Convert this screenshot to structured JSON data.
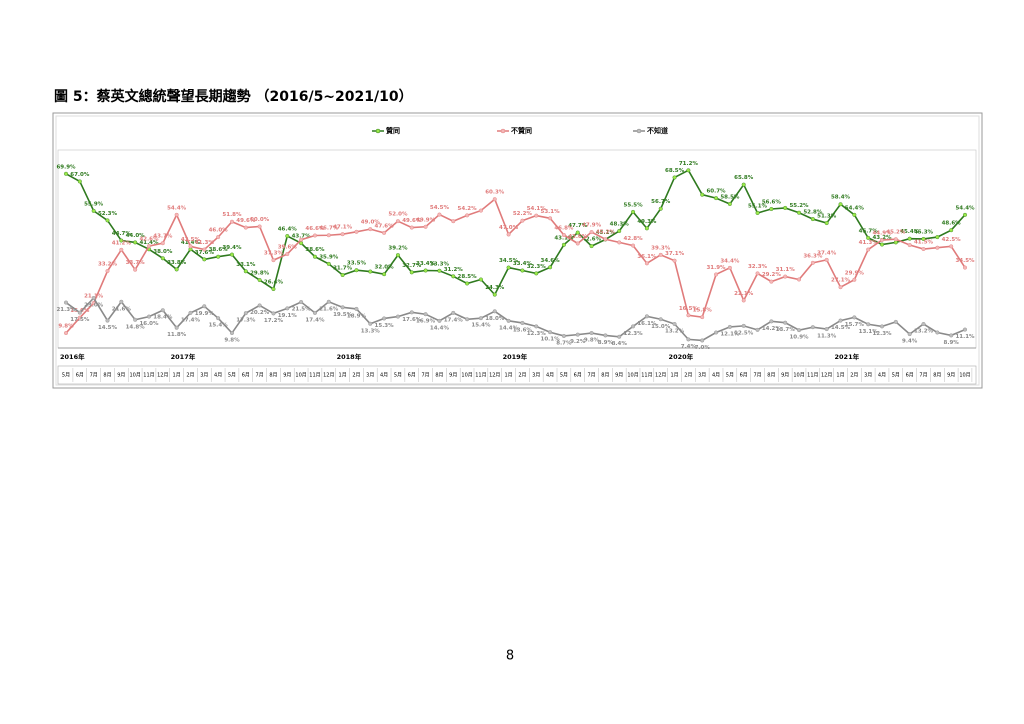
{
  "page_title": "圖 5：蔡英文總統聲望長期趨勢 （2016/5~2021/10）",
  "page_number": "8",
  "chart_data": {
    "type": "line",
    "categories": [
      "5月",
      "6月",
      "7月",
      "8月",
      "9月",
      "10月",
      "11月",
      "12月",
      "1月",
      "2月",
      "3月",
      "4月",
      "5月",
      "6月",
      "7月",
      "8月",
      "9月",
      "10月",
      "11月",
      "12月",
      "1月",
      "2月",
      "3月",
      "4月",
      "5月",
      "6月",
      "7月",
      "8月",
      "9月",
      "10月",
      "11月",
      "12月",
      "1月",
      "2月",
      "3月",
      "4月",
      "5月",
      "6月",
      "7月",
      "8月",
      "9月",
      "10月",
      "11月",
      "12月",
      "1月",
      "2月",
      "3月",
      "4月",
      "5月",
      "6月",
      "7月",
      "8月",
      "9月",
      "10月",
      "11月",
      "12月",
      "1月",
      "2月",
      "3月",
      "4月",
      "5月",
      "6月",
      "7月",
      "8月",
      "9月",
      "10月"
    ],
    "year_labels": [
      "2016年",
      "2017年",
      "2018年",
      "2019年",
      "2020年",
      "2021年"
    ],
    "ylim": [
      0,
      80
    ],
    "legend": "top",
    "series": [
      {
        "name": "贊同",
        "color": "#2f7a1f",
        "marker": "#9be84a",
        "values": [
          69.9,
          67.0,
          55.9,
          52.3,
          44.7,
          44.0,
          41.4,
          38.0,
          33.8,
          41.4,
          37.6,
          38.6,
          39.4,
          33.1,
          29.8,
          26.4,
          46.4,
          43.7,
          38.6,
          35.9,
          31.7,
          33.5,
          33.0,
          32.0,
          39.2,
          32.7,
          33.4,
          33.3,
          31.2,
          28.5,
          30.0,
          24.3,
          34.5,
          33.4,
          32.3,
          34.6,
          43.1,
          47.7,
          42.6,
          45.1,
          48.3,
          55.5,
          49.3,
          56.7,
          68.5,
          71.2,
          62.0,
          60.7,
          58.5,
          65.8,
          55.1,
          56.6,
          57.0,
          55.2,
          52.8,
          51.3,
          58.4,
          54.4,
          45.7,
          43.2,
          44.0,
          45.4,
          45.3,
          46.0,
          48.6,
          54.4
        ],
        "value_labels": [
          "69.9%",
          "67.0%",
          "55.9%",
          "52.3%",
          "44.7%",
          "44.0%",
          "41.4%",
          "38.0%",
          "33.8%",
          "41.4%",
          "37.6%",
          "38.6%",
          "39.4%",
          "33.1%",
          "29.8%",
          "26.4%",
          "46.4%",
          "43.7%",
          "38.6%",
          "35.9%",
          "31.7%",
          "33.5%",
          null,
          "32.0%",
          "39.2%",
          "32.7%",
          "33.4%",
          "33.3%",
          "31.2%",
          "28.5%",
          null,
          "24.3%",
          "34.5%",
          "33.4%",
          "32.3%",
          "34.6%",
          "43.1%",
          "47.7%",
          "42.6%",
          "45.1%",
          "48.3%",
          "55.5%",
          "49.3%",
          "56.7%",
          "68.5%",
          "71.2%",
          null,
          "60.7%",
          "58.5%",
          "65.8%",
          "55.1%",
          "56.6%",
          null,
          "55.2%",
          "52.8%",
          "51.3%",
          "58.4%",
          "54.4%",
          "45.7%",
          "43.2%",
          null,
          "45.4%",
          "45.3%",
          null,
          "48.6%",
          "54.4%"
        ]
      },
      {
        "name": "不贊同",
        "color": "#e07b7b",
        "marker": "#f4b8b8",
        "values": [
          9.8,
          15.6,
          21.1,
          33.2,
          41.2,
          33.7,
          42.6,
          43.7,
          54.4,
          42.5,
          41.3,
          46.0,
          51.8,
          49.6,
          50.0,
          37.3,
          39.6,
          45.0,
          46.6,
          46.7,
          47.1,
          48.0,
          49.0,
          47.6,
          52.0,
          49.6,
          49.9,
          54.5,
          52.0,
          54.2,
          56.0,
          60.3,
          47.0,
          52.2,
          54.1,
          53.1,
          46.8,
          43.6,
          47.9,
          45.2,
          44.0,
          42.8,
          36.1,
          39.3,
          37.1,
          16.5,
          15.8,
          31.9,
          34.4,
          22.1,
          32.3,
          29.2,
          31.1,
          30.0,
          36.3,
          37.4,
          27.1,
          29.9,
          41.3,
          44.9,
          45.2,
          43.0,
          41.5,
          42.0,
          42.5,
          34.5
        ],
        "value_labels": [
          "9.8%",
          "15.6%",
          "21.1%",
          "33.2%",
          "41.2%",
          "33.7%",
          "42.6%",
          "43.7%",
          "54.4%",
          "42.5%",
          "41.3%",
          "46.0%",
          "51.8%",
          "49.6%",
          "50.0%",
          "37.3%",
          "39.6%",
          null,
          "46.6%",
          "46.7%",
          "47.1%",
          null,
          "49.0%",
          "47.6%",
          "52.0%",
          "49.6%",
          "49.9%",
          "54.5%",
          null,
          "54.2%",
          null,
          "60.3%",
          "47.0%",
          "52.2%",
          "54.1%",
          "53.1%",
          "46.8%",
          "43.6%",
          "47.9%",
          "45.2%",
          null,
          "42.8%",
          "36.1%",
          "39.3%",
          "37.1%",
          "16.5%",
          "15.8%",
          "31.9%",
          "34.4%",
          "22.1%",
          "32.3%",
          "29.2%",
          "31.1%",
          null,
          "36.3%",
          "37.4%",
          "27.1%",
          "29.9%",
          "41.3%",
          "44.9%",
          "45.2%",
          null,
          "41.5%",
          null,
          "42.5%",
          "34.5%"
        ]
      },
      {
        "name": "不知道",
        "color": "#8a8a8a",
        "marker": "#bdbdbd",
        "values": [
          21.3,
          17.5,
          23.0,
          14.5,
          21.6,
          14.8,
          16.0,
          18.4,
          11.8,
          17.4,
          19.9,
          15.4,
          9.8,
          17.3,
          20.2,
          17.2,
          19.1,
          21.5,
          17.4,
          21.6,
          19.5,
          18.9,
          13.3,
          15.3,
          16.0,
          17.6,
          16.9,
          14.4,
          17.4,
          15.0,
          15.4,
          18.0,
          14.4,
          13.6,
          12.3,
          10.1,
          8.7,
          9.2,
          9.8,
          8.9,
          8.4,
          12.3,
          16.1,
          15.0,
          13.2,
          7.4,
          7.0,
          10.0,
          12.1,
          12.5,
          11.0,
          14.2,
          13.7,
          10.9,
          12.0,
          11.3,
          14.5,
          15.7,
          13.1,
          12.3,
          14.0,
          9.4,
          13.2,
          10.0,
          8.9,
          11.1
        ],
        "value_labels": [
          "21.3%",
          "17.5%",
          "23.0%",
          "14.5%",
          "21.6%",
          "14.8%",
          "16.0%",
          "18.4%",
          "11.8%",
          "17.4%",
          "19.9%",
          "15.4%",
          "9.8%",
          "17.3%",
          "20.2%",
          "17.2%",
          "19.1%",
          "21.5%",
          "17.4%",
          "21.6%",
          "19.5%",
          "18.9%",
          "13.3%",
          "15.3%",
          null,
          "17.6%",
          "16.9%",
          "14.4%",
          "17.4%",
          null,
          "15.4%",
          "18.0%",
          "14.4%",
          "13.6%",
          "12.3%",
          "10.1%",
          "8.7%",
          "9.2%",
          "9.8%",
          "8.9%",
          "8.4%",
          "12.3%",
          "16.1%",
          "15.0%",
          "13.2%",
          "7.4%",
          "7.0%",
          null,
          "12.1%",
          "12.5%",
          null,
          "14.2%",
          "13.7%",
          "10.9%",
          null,
          "11.3%",
          "14.5%",
          "15.7%",
          "13.1%",
          "12.3%",
          null,
          "9.4%",
          "13.2%",
          null,
          "8.9%",
          "11.1%"
        ]
      }
    ]
  }
}
